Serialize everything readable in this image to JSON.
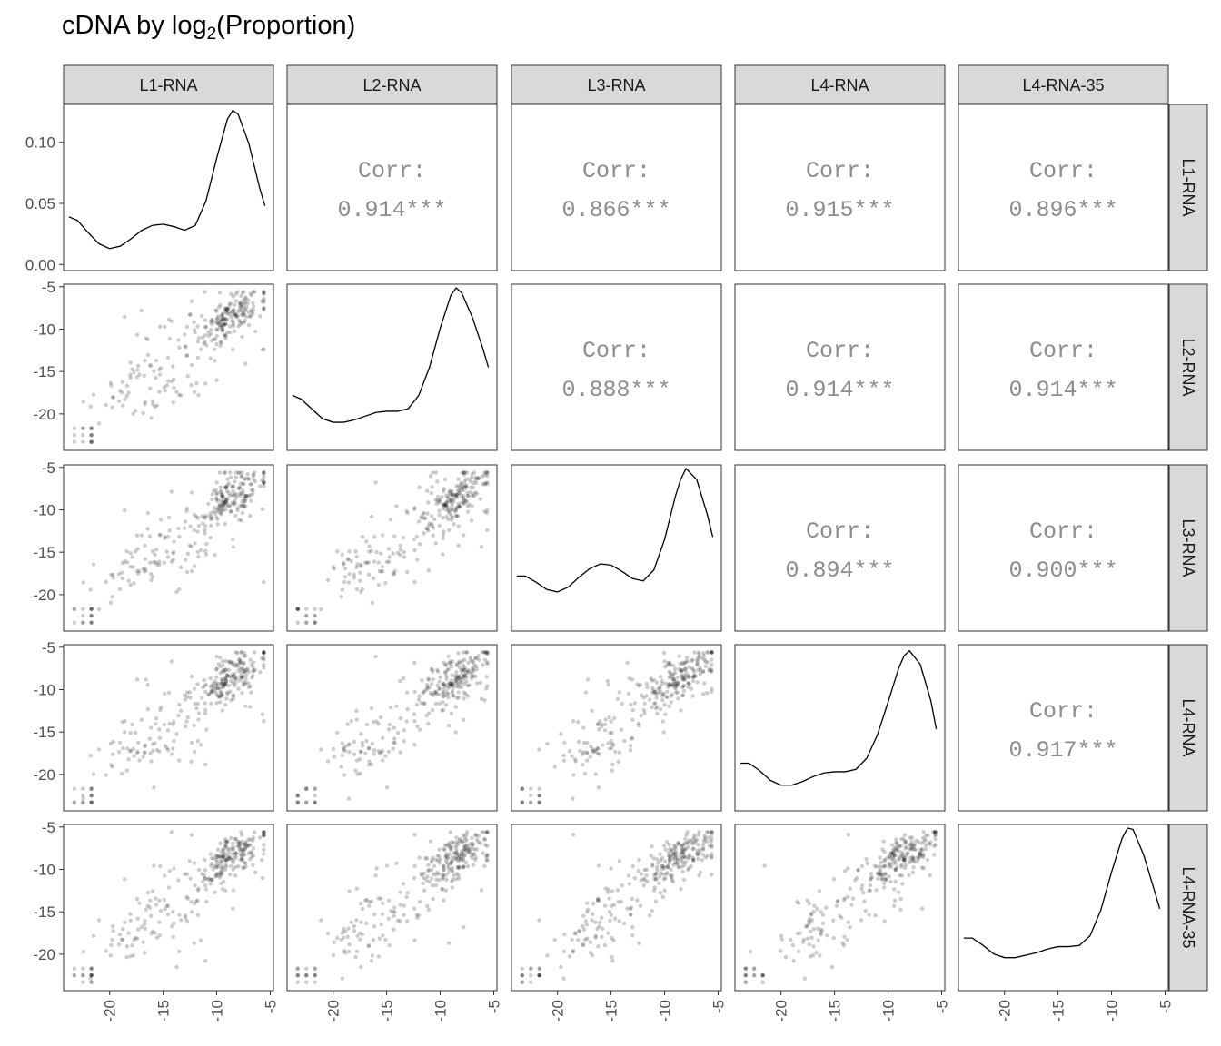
{
  "title": {
    "prefix": "cDNA by log",
    "sub": "2",
    "suffix": "(Proportion)"
  },
  "strip_labels": [
    "L1-RNA",
    "L2-RNA",
    "L3-RNA",
    "L4-RNA",
    "L4-RNA-35"
  ],
  "corr_label": "Corr:",
  "correlations": [
    {
      "row": "L1-RNA",
      "col": "L2-RNA",
      "value": "0.914***"
    },
    {
      "row": "L1-RNA",
      "col": "L3-RNA",
      "value": "0.866***"
    },
    {
      "row": "L1-RNA",
      "col": "L4-RNA",
      "value": "0.915***"
    },
    {
      "row": "L1-RNA",
      "col": "L4-RNA-35",
      "value": "0.896***"
    },
    {
      "row": "L2-RNA",
      "col": "L3-RNA",
      "value": "0.888***"
    },
    {
      "row": "L2-RNA",
      "col": "L4-RNA",
      "value": "0.914***"
    },
    {
      "row": "L2-RNA",
      "col": "L4-RNA-35",
      "value": "0.914***"
    },
    {
      "row": "L3-RNA",
      "col": "L4-RNA",
      "value": "0.894***"
    },
    {
      "row": "L3-RNA",
      "col": "L4-RNA-35",
      "value": "0.900***"
    },
    {
      "row": "L4-RNA",
      "col": "L4-RNA-35",
      "value": "0.917***"
    }
  ],
  "colors": {
    "points": "#000000",
    "strip_fill": "#d9d9d9",
    "corr_text": "#8c8c8c",
    "axis_text": "#4d4d4d"
  },
  "chart_data": {
    "type": "scatter",
    "variables": [
      "L1-RNA",
      "L2-RNA",
      "L3-RNA",
      "L4-RNA",
      "L4-RNA-35"
    ],
    "xlim": [
      -24.3,
      -4.7
    ],
    "ylim": [
      -24.3,
      -4.7
    ],
    "x_ticks": [
      -20,
      -15,
      -10,
      -5
    ],
    "y_ticks": [
      -20,
      -15,
      -10,
      -5
    ],
    "density": {
      "ylim": [
        -0.005,
        0.131
      ],
      "y_ticks": [
        "0.00",
        "0.05",
        "0.10"
      ],
      "x": [
        -23.8,
        -23,
        -22,
        -21,
        -20,
        -19,
        -18,
        -17,
        -16,
        -15,
        -14,
        -13,
        -12,
        -11,
        -10,
        -9,
        -8.5,
        -8,
        -7,
        -6,
        -5.5
      ],
      "curves": [
        {
          "name": "L1-RNA",
          "values": [
            0.039,
            0.036,
            0.026,
            0.017,
            0.013,
            0.015,
            0.021,
            0.028,
            0.032,
            0.033,
            0.031,
            0.028,
            0.032,
            0.052,
            0.087,
            0.119,
            0.126,
            0.123,
            0.099,
            0.063,
            0.048
          ]
        },
        {
          "name": "L2-RNA",
          "values": [
            0.04,
            0.037,
            0.029,
            0.021,
            0.018,
            0.018,
            0.02,
            0.023,
            0.026,
            0.027,
            0.027,
            0.029,
            0.04,
            0.063,
            0.095,
            0.122,
            0.128,
            0.124,
            0.104,
            0.078,
            0.063
          ]
        },
        {
          "name": "L3-RNA",
          "values": [
            0.04,
            0.04,
            0.035,
            0.029,
            0.027,
            0.031,
            0.039,
            0.046,
            0.05,
            0.049,
            0.044,
            0.038,
            0.036,
            0.045,
            0.07,
            0.105,
            0.119,
            0.128,
            0.119,
            0.09,
            0.072
          ]
        },
        {
          "name": "L4-RNA",
          "values": [
            0.034,
            0.034,
            0.028,
            0.02,
            0.016,
            0.016,
            0.019,
            0.023,
            0.026,
            0.027,
            0.027,
            0.029,
            0.038,
            0.057,
            0.084,
            0.112,
            0.122,
            0.126,
            0.115,
            0.085,
            0.062
          ]
        },
        {
          "name": "L4-RNA-35",
          "values": [
            0.038,
            0.038,
            0.032,
            0.025,
            0.022,
            0.022,
            0.024,
            0.026,
            0.029,
            0.031,
            0.031,
            0.032,
            0.04,
            0.061,
            0.092,
            0.12,
            0.128,
            0.127,
            0.106,
            0.077,
            0.062
          ]
        }
      ]
    },
    "point_alpha": 0.2,
    "point_count": 300
  }
}
